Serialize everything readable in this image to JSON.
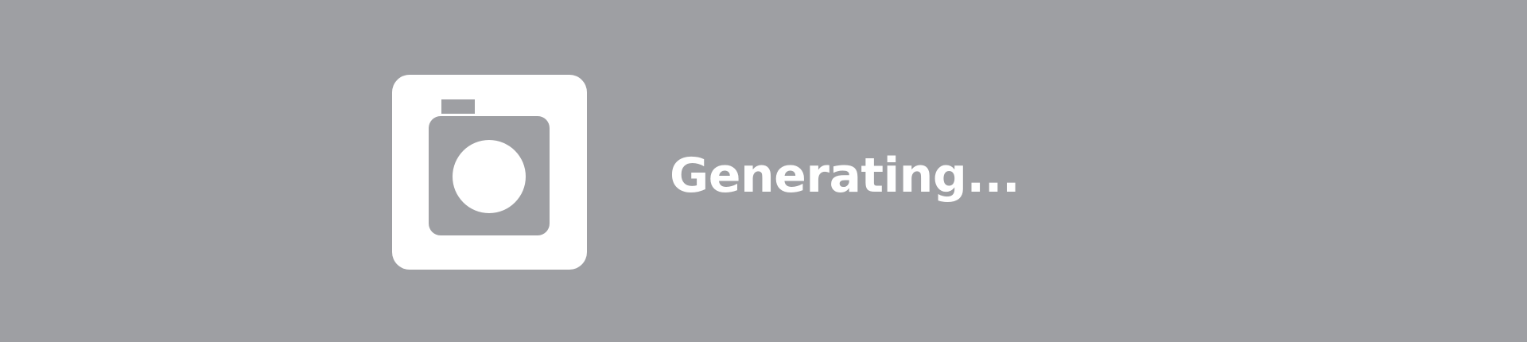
{
  "loading": {
    "icon": "camera-icon",
    "status_text": "Generating...",
    "background_color": "#9e9fa3",
    "foreground_color": "#ffffff"
  }
}
